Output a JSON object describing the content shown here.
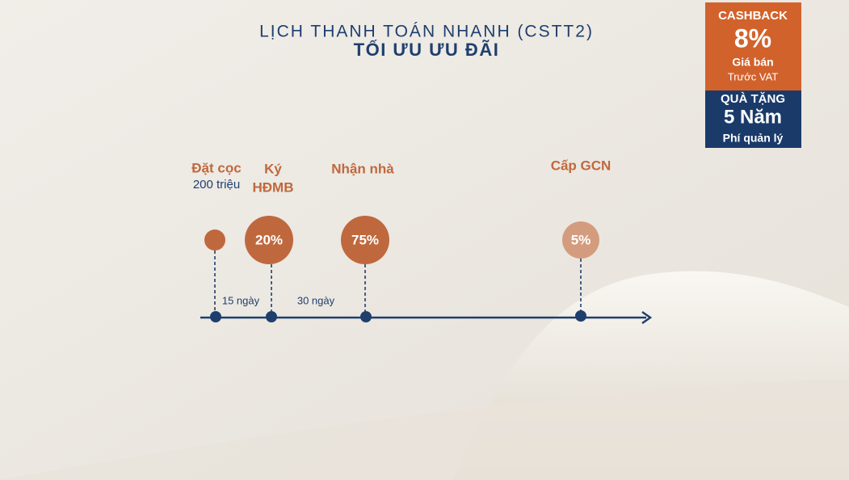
{
  "header": {
    "title": "LỊCH THANH TOÁN NHANH (CSTT2)",
    "subtitle": "TỐI ƯU ƯU ĐÃI"
  },
  "badge": {
    "cashback": {
      "label": "CASHBACK",
      "value": "8%",
      "line1": "Giá bán",
      "line2": "Trước VAT"
    },
    "gift": {
      "label": "QUÀ TẶNG",
      "value": "5 Năm",
      "note": "Phí quản lý"
    }
  },
  "milestones": [
    {
      "label": [
        "Đặt cọc"
      ],
      "detail": "200 triệu"
    },
    {
      "label": [
        "Ký",
        "HĐMB"
      ],
      "percent": "20%"
    },
    {
      "label": [
        "Nhận nhà"
      ],
      "percent": "75%"
    },
    {
      "label": [
        "Cấp GCN"
      ],
      "percent": "5%"
    }
  ],
  "intervals": [
    "15 ngày",
    "30 ngày"
  ]
}
